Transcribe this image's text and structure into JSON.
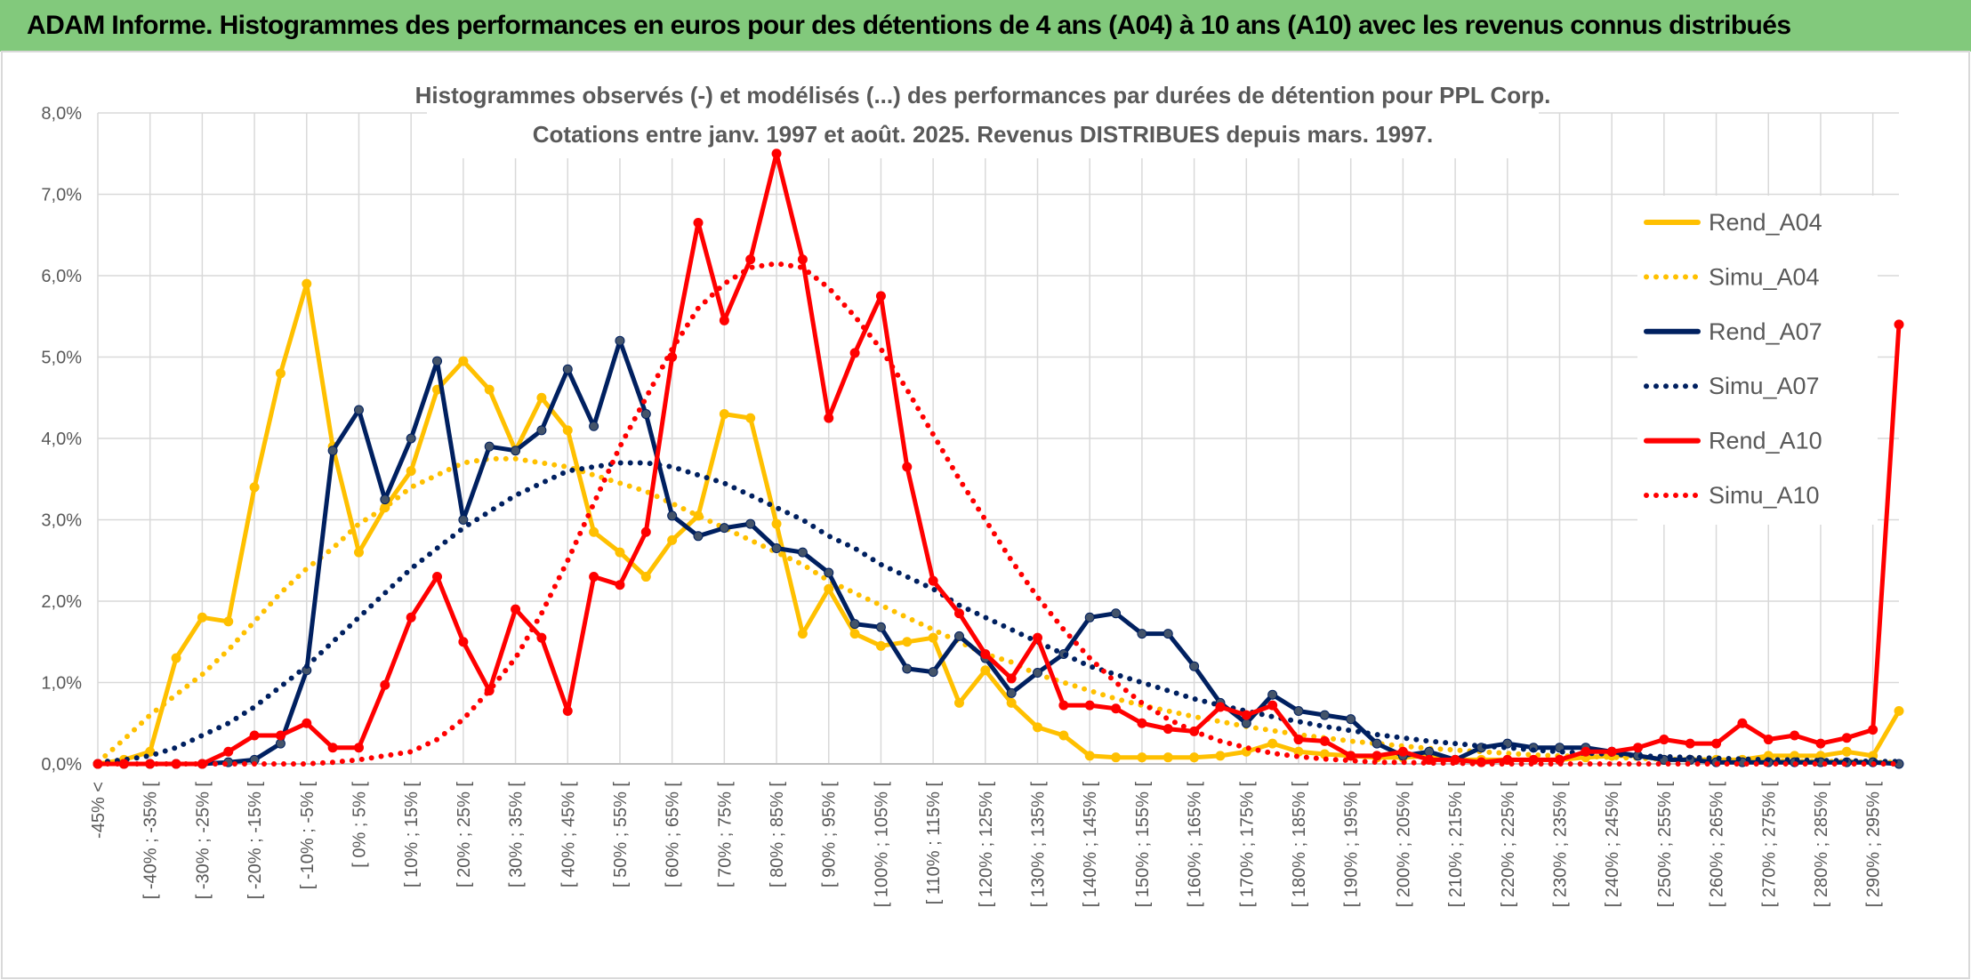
{
  "header": {
    "title": "ADAM Informe. Histogrammes des performances en euros pour des détentions de 4 ans (A04) à 10 ans (A10) avec les revenus connus distribués"
  },
  "chart_data": {
    "type": "line",
    "title": "Histogrammes observés (-) et modélisés (...) des performances par durées de détention pour PPL Corp.",
    "subtitle": "Cotations entre janv. 1997 et août. 2025. Revenus DISTRIBUES depuis mars. 1997.",
    "categories": [
      "-45% <",
      null,
      "[ -40% ; -35% [",
      null,
      "[ -30% ; -25% [",
      null,
      "[ -20% ; -15% [",
      null,
      "[ -10% ; -5% [",
      null,
      "[ 0% ; 5% [",
      null,
      "[ 10% ; 15% [",
      null,
      "[ 20% ; 25% [",
      null,
      "[ 30% ; 35% [",
      null,
      "[ 40% ; 45% [",
      null,
      "[ 50% ; 55% [",
      null,
      "[ 60% ; 65% [",
      null,
      "[ 70% ; 75% [",
      null,
      "[ 80% ; 85% [",
      null,
      "[ 90% ; 95% [",
      null,
      "[ 100% ; 105% [",
      null,
      "[ 110% ; 115% [",
      null,
      "[ 120% ; 125% [",
      null,
      "[ 130% ; 135% [",
      null,
      "[ 140% ; 145% [",
      null,
      "[ 150% ; 155% [",
      null,
      "[ 160% ; 165% [",
      null,
      "[ 170% ; 175% [",
      null,
      "[ 180% ; 185% [",
      null,
      "[ 190% ; 195% [",
      null,
      "[ 200% ; 205% [",
      null,
      "[ 210% ; 215% [",
      null,
      "[ 220% ; 225% [",
      null,
      "[ 230% ; 235% [",
      null,
      "[ 240% ; 245% [",
      null,
      "[ 250% ; 255% [",
      null,
      "[ 260% ; 265% [",
      null,
      "[ 270% ; 275% [",
      null,
      "[ 280% ; 285% [",
      null,
      "[ 290% ; 295% [",
      null
    ],
    "ylim": [
      0,
      8
    ],
    "yticks": [
      {
        "value": 0,
        "label": "0,0%"
      },
      {
        "value": 1,
        "label": "1,0%"
      },
      {
        "value": 2,
        "label": "2,0%"
      },
      {
        "value": 3,
        "label": "3,0%"
      },
      {
        "value": 4,
        "label": "4,0%"
      },
      {
        "value": 5,
        "label": "5,0%"
      },
      {
        "value": 6,
        "label": "6,0%"
      },
      {
        "value": 7,
        "label": "7,0%"
      },
      {
        "value": 8,
        "label": "8,0%"
      }
    ],
    "grid": true,
    "legend": "right",
    "series": [
      {
        "name": "Rend_A04",
        "color": "#ffc000",
        "style": "solid",
        "values": [
          0,
          0.05,
          0.15,
          1.3,
          1.8,
          1.75,
          3.4,
          4.8,
          5.9,
          3.9,
          2.6,
          3.15,
          3.6,
          4.6,
          4.95,
          4.6,
          3.85,
          4.5,
          4.1,
          2.85,
          2.6,
          2.3,
          2.75,
          3.05,
          4.3,
          4.25,
          2.95,
          1.6,
          2.15,
          1.6,
          1.45,
          1.5,
          1.55,
          0.75,
          1.15,
          0.75,
          0.45,
          0.35,
          0.1,
          0.08,
          0.08,
          0.08,
          0.08,
          0.1,
          0.15,
          0.25,
          0.15,
          0.12,
          0.1,
          0.08,
          0.08,
          0.1,
          0.05,
          0.05,
          0.05,
          0.05,
          0.05,
          0.08,
          0.1,
          0.1,
          0.05,
          0.05,
          0.05,
          0.05,
          0.1,
          0.1,
          0.1,
          0.15,
          0.1,
          0.65
        ]
      },
      {
        "name": "Simu_A04",
        "color": "#ffc000",
        "style": "dotted",
        "values": [
          0.02,
          0.3,
          0.6,
          0.85,
          1.1,
          1.4,
          1.75,
          2.1,
          2.4,
          2.65,
          2.95,
          3.15,
          3.4,
          3.55,
          3.7,
          3.75,
          3.75,
          3.7,
          3.65,
          3.55,
          3.45,
          3.35,
          3.2,
          3.05,
          2.9,
          2.75,
          2.6,
          2.45,
          2.25,
          2.1,
          1.95,
          1.8,
          1.65,
          1.5,
          1.35,
          1.25,
          1.1,
          1.0,
          0.9,
          0.8,
          0.72,
          0.65,
          0.58,
          0.52,
          0.46,
          0.41,
          0.36,
          0.32,
          0.28,
          0.25,
          0.22,
          0.19,
          0.17,
          0.15,
          0.13,
          0.11,
          0.1,
          0.09,
          0.08,
          0.07,
          0.06,
          0.05,
          0.05,
          0.04,
          0.04,
          0.03,
          0.03,
          0.03,
          0.02,
          0.02
        ]
      },
      {
        "name": "Rend_A07",
        "color": "#002060",
        "style": "solid",
        "values": [
          0,
          0,
          0,
          0,
          0,
          0.02,
          0.05,
          0.25,
          1.15,
          3.85,
          4.35,
          3.25,
          4.0,
          4.95,
          3.0,
          3.9,
          3.85,
          4.1,
          4.85,
          4.15,
          5.2,
          4.3,
          3.05,
          2.8,
          2.9,
          2.95,
          2.65,
          2.6,
          2.35,
          1.72,
          1.68,
          1.17,
          1.13,
          1.57,
          1.3,
          0.87,
          1.12,
          1.35,
          1.8,
          1.85,
          1.6,
          1.6,
          1.2,
          0.75,
          0.5,
          0.85,
          0.65,
          0.6,
          0.55,
          0.25,
          0.1,
          0.15,
          0.05,
          0.2,
          0.25,
          0.2,
          0.2,
          0.2,
          0.15,
          0.1,
          0.05,
          0.05,
          0.02,
          0.02,
          0.02,
          0.02,
          0.02,
          0.02,
          0.02,
          0
        ]
      },
      {
        "name": "Simu_A07",
        "color": "#002060",
        "style": "dotted",
        "values": [
          0.02,
          0.05,
          0.1,
          0.2,
          0.35,
          0.5,
          0.7,
          0.95,
          1.2,
          1.5,
          1.8,
          2.1,
          2.4,
          2.65,
          2.9,
          3.1,
          3.3,
          3.45,
          3.6,
          3.65,
          3.7,
          3.7,
          3.65,
          3.55,
          3.45,
          3.3,
          3.15,
          3.0,
          2.8,
          2.65,
          2.45,
          2.3,
          2.15,
          1.95,
          1.8,
          1.65,
          1.5,
          1.35,
          1.2,
          1.1,
          1.0,
          0.9,
          0.8,
          0.72,
          0.65,
          0.58,
          0.52,
          0.46,
          0.41,
          0.36,
          0.32,
          0.28,
          0.25,
          0.22,
          0.2,
          0.17,
          0.15,
          0.13,
          0.12,
          0.1,
          0.09,
          0.08,
          0.07,
          0.06,
          0.05,
          0.05,
          0.04,
          0.04,
          0.03,
          0.03
        ]
      },
      {
        "name": "Rend_A10",
        "color": "#ff0000",
        "style": "solid",
        "values": [
          0,
          0,
          0,
          0,
          0,
          0.15,
          0.35,
          0.35,
          0.5,
          0.2,
          0.2,
          0.97,
          1.8,
          2.3,
          1.5,
          0.9,
          1.9,
          1.55,
          0.65,
          2.3,
          2.2,
          2.85,
          5.0,
          6.65,
          5.45,
          6.2,
          7.5,
          6.2,
          4.25,
          5.05,
          5.75,
          3.65,
          2.25,
          1.85,
          1.35,
          1.05,
          1.55,
          0.72,
          0.72,
          0.68,
          0.5,
          0.43,
          0.4,
          0.7,
          0.6,
          0.72,
          0.3,
          0.28,
          0.1,
          0.1,
          0.15,
          0.05,
          0.05,
          0.02,
          0.05,
          0.05,
          0.05,
          0.15,
          0.15,
          0.2,
          0.3,
          0.25,
          0.25,
          0.5,
          0.3,
          0.35,
          0.25,
          0.32,
          0.42,
          5.4
        ]
      },
      {
        "name": "Simu_A10",
        "color": "#ff0000",
        "style": "dotted",
        "values": [
          0,
          0,
          0,
          0,
          0,
          0,
          0,
          0,
          0,
          0.02,
          0.05,
          0.1,
          0.15,
          0.3,
          0.55,
          0.9,
          1.3,
          1.85,
          2.5,
          3.2,
          3.9,
          4.5,
          5.1,
          5.6,
          5.9,
          6.1,
          6.15,
          6.1,
          5.85,
          5.5,
          5.1,
          4.6,
          4.05,
          3.5,
          3.0,
          2.5,
          2.05,
          1.65,
          1.3,
          1.0,
          0.75,
          0.55,
          0.4,
          0.28,
          0.2,
          0.13,
          0.09,
          0.06,
          0.04,
          0.02,
          0.02,
          0.01,
          0.01,
          0,
          0,
          0,
          0,
          0,
          0,
          0,
          0,
          0,
          0,
          0,
          0,
          0,
          0,
          0,
          0,
          0
        ]
      }
    ]
  }
}
